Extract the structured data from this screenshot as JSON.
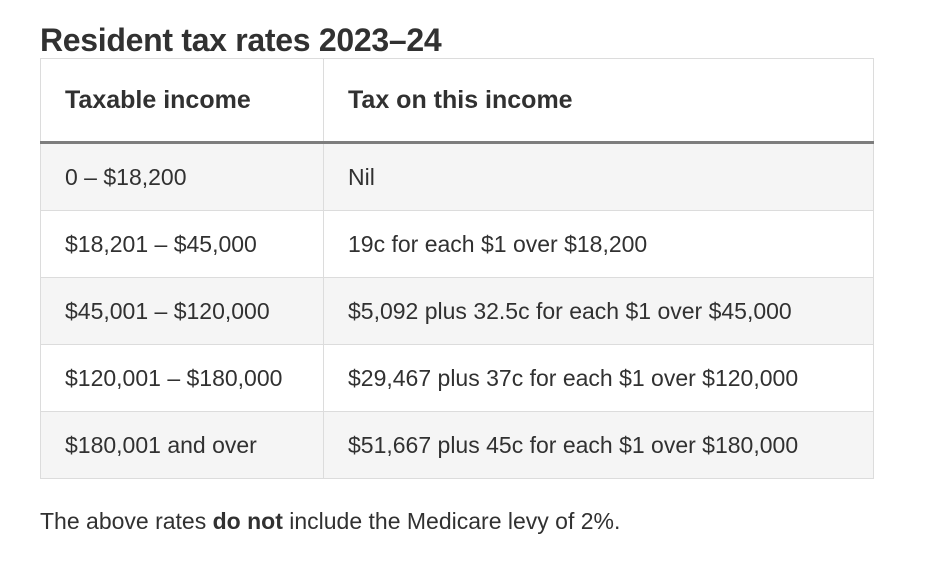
{
  "title": "Resident tax rates 2023–24",
  "table": {
    "headers": [
      "Taxable income",
      "Tax on this income"
    ],
    "rows": [
      [
        "0 – $18,200",
        "Nil"
      ],
      [
        "$18,201 – $45,000",
        "19c for each $1 over $18,200"
      ],
      [
        "$45,001 – $120,000",
        "$5,092 plus 32.5c for each $1 over $45,000"
      ],
      [
        "$120,001 – $180,000",
        "$29,467 plus 37c for each $1 over $120,000"
      ],
      [
        "$180,001 and over",
        "$51,667 plus 45c for each $1 over $180,000"
      ]
    ]
  },
  "note": {
    "before": "The above rates ",
    "emphasis": "do not",
    "after": " include the Medicare levy of 2%."
  }
}
